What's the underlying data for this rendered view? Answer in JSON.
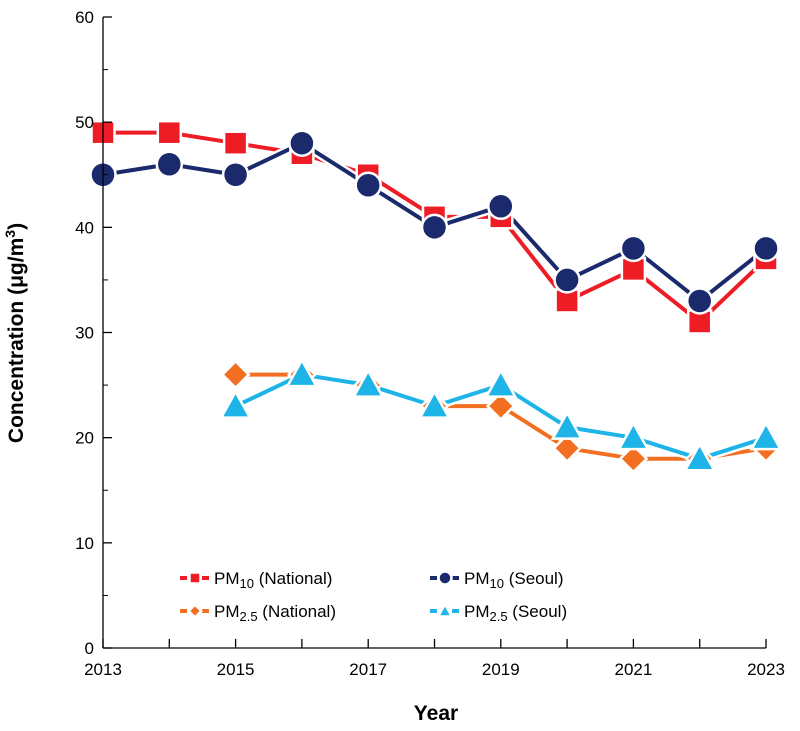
{
  "chart_data": {
    "type": "line",
    "title": "",
    "xlabel": "Year",
    "ylabel": "Concentration (μg/m³)",
    "ylabel_parts": {
      "main": "Concentration (μg/m",
      "sup": "3",
      "close": ")"
    },
    "xlim": [
      2013,
      2023
    ],
    "ylim": [
      0,
      60
    ],
    "x_ticks": [
      2013,
      2015,
      2017,
      2019,
      2021,
      2023
    ],
    "y_ticks": [
      0,
      10,
      20,
      30,
      40,
      50,
      60
    ],
    "grid": false,
    "legend_position": "bottom-left",
    "series": [
      {
        "name": "PM10 (National)",
        "label_main": "PM",
        "label_sub": "10",
        "label_suffix": " (National)",
        "color": "#ee1c25",
        "marker": "square",
        "x": [
          2013,
          2014,
          2015,
          2016,
          2017,
          2018,
          2019,
          2020,
          2021,
          2022,
          2023
        ],
        "values": [
          49,
          49,
          48,
          47,
          45,
          41,
          41,
          33,
          36,
          31,
          37
        ]
      },
      {
        "name": "PM10 (Seoul)",
        "label_main": "PM",
        "label_sub": "10",
        "label_suffix": " (Seoul)",
        "color": "#1a2a6c",
        "marker": "circle",
        "x": [
          2013,
          2014,
          2015,
          2016,
          2017,
          2018,
          2019,
          2020,
          2021,
          2022,
          2023
        ],
        "values": [
          45,
          46,
          45,
          48,
          44,
          40,
          42,
          35,
          38,
          33,
          38
        ]
      },
      {
        "name": "PM2.5 (National)",
        "label_main": "PM",
        "label_sub": "2.5",
        "label_suffix": " (National)",
        "color": "#f26f21",
        "marker": "diamond",
        "x": [
          2015,
          2016,
          2017,
          2018,
          2019,
          2020,
          2021,
          2022,
          2023
        ],
        "values": [
          26,
          26,
          25,
          23,
          23,
          19,
          18,
          18,
          19
        ]
      },
      {
        "name": "PM2.5 (Seoul)",
        "label_main": "PM",
        "label_sub": "2.5",
        "label_suffix": " (Seoul)",
        "color": "#1eb4e8",
        "marker": "triangle",
        "x": [
          2015,
          2016,
          2017,
          2018,
          2019,
          2020,
          2021,
          2022,
          2023
        ],
        "values": [
          23,
          26,
          25,
          23,
          25,
          21,
          20,
          18,
          20
        ]
      }
    ]
  }
}
